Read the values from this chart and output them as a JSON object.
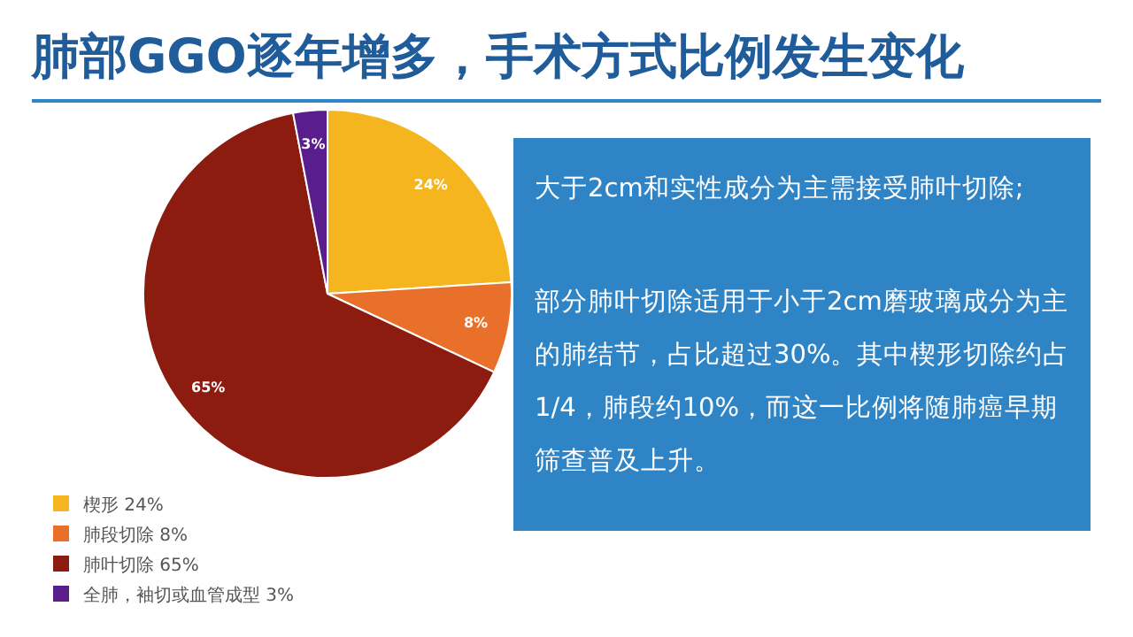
{
  "chart_data": [
    {
      "type": "pie",
      "title": "肺部GGO逐年增多，手术方式比例发生变化",
      "categories": [
        "楔形 24%",
        "肺段切除 8%",
        "肺叶切除 65%",
        "全肺，袖切或血管成型 3%"
      ],
      "values": [
        24,
        8,
        65,
        3
      ],
      "colors": [
        "#f5b51e",
        "#e8702a",
        "#8c1c0f",
        "#5a1e8c"
      ],
      "value_labels": [
        "24%",
        "8%",
        "65%",
        "3%"
      ],
      "legend": "bottom left"
    },
    {
      "type": "other",
      "annotations": [
        "大于2cm和实性成分为主需接受肺叶切除;",
        "部分肺叶切除适用于小于2cm磨玻璃成分为主的肺结节，占比超过30%。其中楔形切除约占1/4，肺段约10%，而这一比例将随肺癌早期筛查普及上升。"
      ]
    }
  ]
}
